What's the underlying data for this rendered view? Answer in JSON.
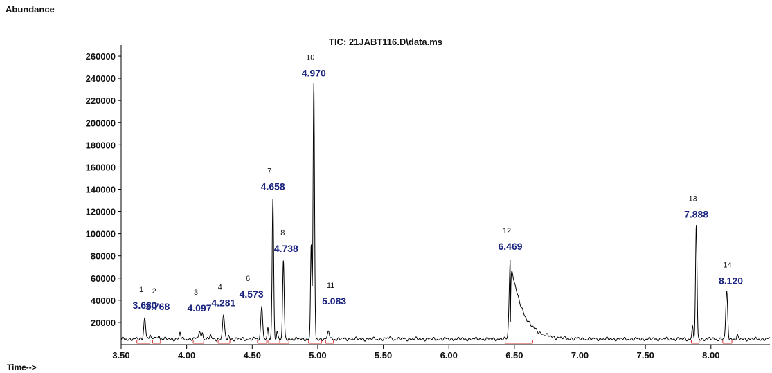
{
  "header": {
    "y_label": "Abundance",
    "x_label": "Time-->"
  },
  "chart_data": {
    "type": "line",
    "title": "TIC: 21JABT116.D\\data.ms",
    "xlabel": "Time-->",
    "ylabel": "Abundance",
    "xlim": [
      3.5,
      8.45
    ],
    "ylim": [
      0,
      270000
    ],
    "x_ticks": [
      "3.50",
      "4.00",
      "4.50",
      "5.00",
      "5.50",
      "6.00",
      "6.50",
      "7.00",
      "7.50",
      "8.00"
    ],
    "y_ticks": [
      "20000",
      "40000",
      "60000",
      "80000",
      "100000",
      "120000",
      "140000",
      "160000",
      "180000",
      "200000",
      "220000",
      "240000",
      "260000"
    ],
    "line_color": "#000000",
    "label_color": "#1a237e",
    "peaks": [
      {
        "num": "1",
        "rt": "3.680",
        "x": 3.68,
        "y": 25000
      },
      {
        "num": "2",
        "rt": "3.768",
        "x": 3.768,
        "y": 8000
      },
      {
        "num": "3",
        "rt": "4.097",
        "x": 4.097,
        "y": 12000
      },
      {
        "num": "4",
        "rt": "4.281",
        "x": 4.281,
        "y": 27000
      },
      {
        "num": "6",
        "rt": "4.573",
        "x": 4.573,
        "y": 35000
      },
      {
        "num": "7",
        "rt": "4.658",
        "x": 4.658,
        "y": 132000
      },
      {
        "num": "8",
        "rt": "4.738",
        "x": 4.738,
        "y": 76000
      },
      {
        "num": "10",
        "rt": "4.970",
        "x": 4.97,
        "y": 234000
      },
      {
        "num": "11",
        "rt": "5.083",
        "x": 5.083,
        "y": 12000
      },
      {
        "num": "12",
        "rt": "6.469",
        "x": 6.469,
        "y": 78000
      },
      {
        "num": "13",
        "rt": "7.888",
        "x": 7.888,
        "y": 107000
      },
      {
        "num": "14",
        "rt": "8.120",
        "x": 8.12,
        "y": 47000
      }
    ]
  }
}
